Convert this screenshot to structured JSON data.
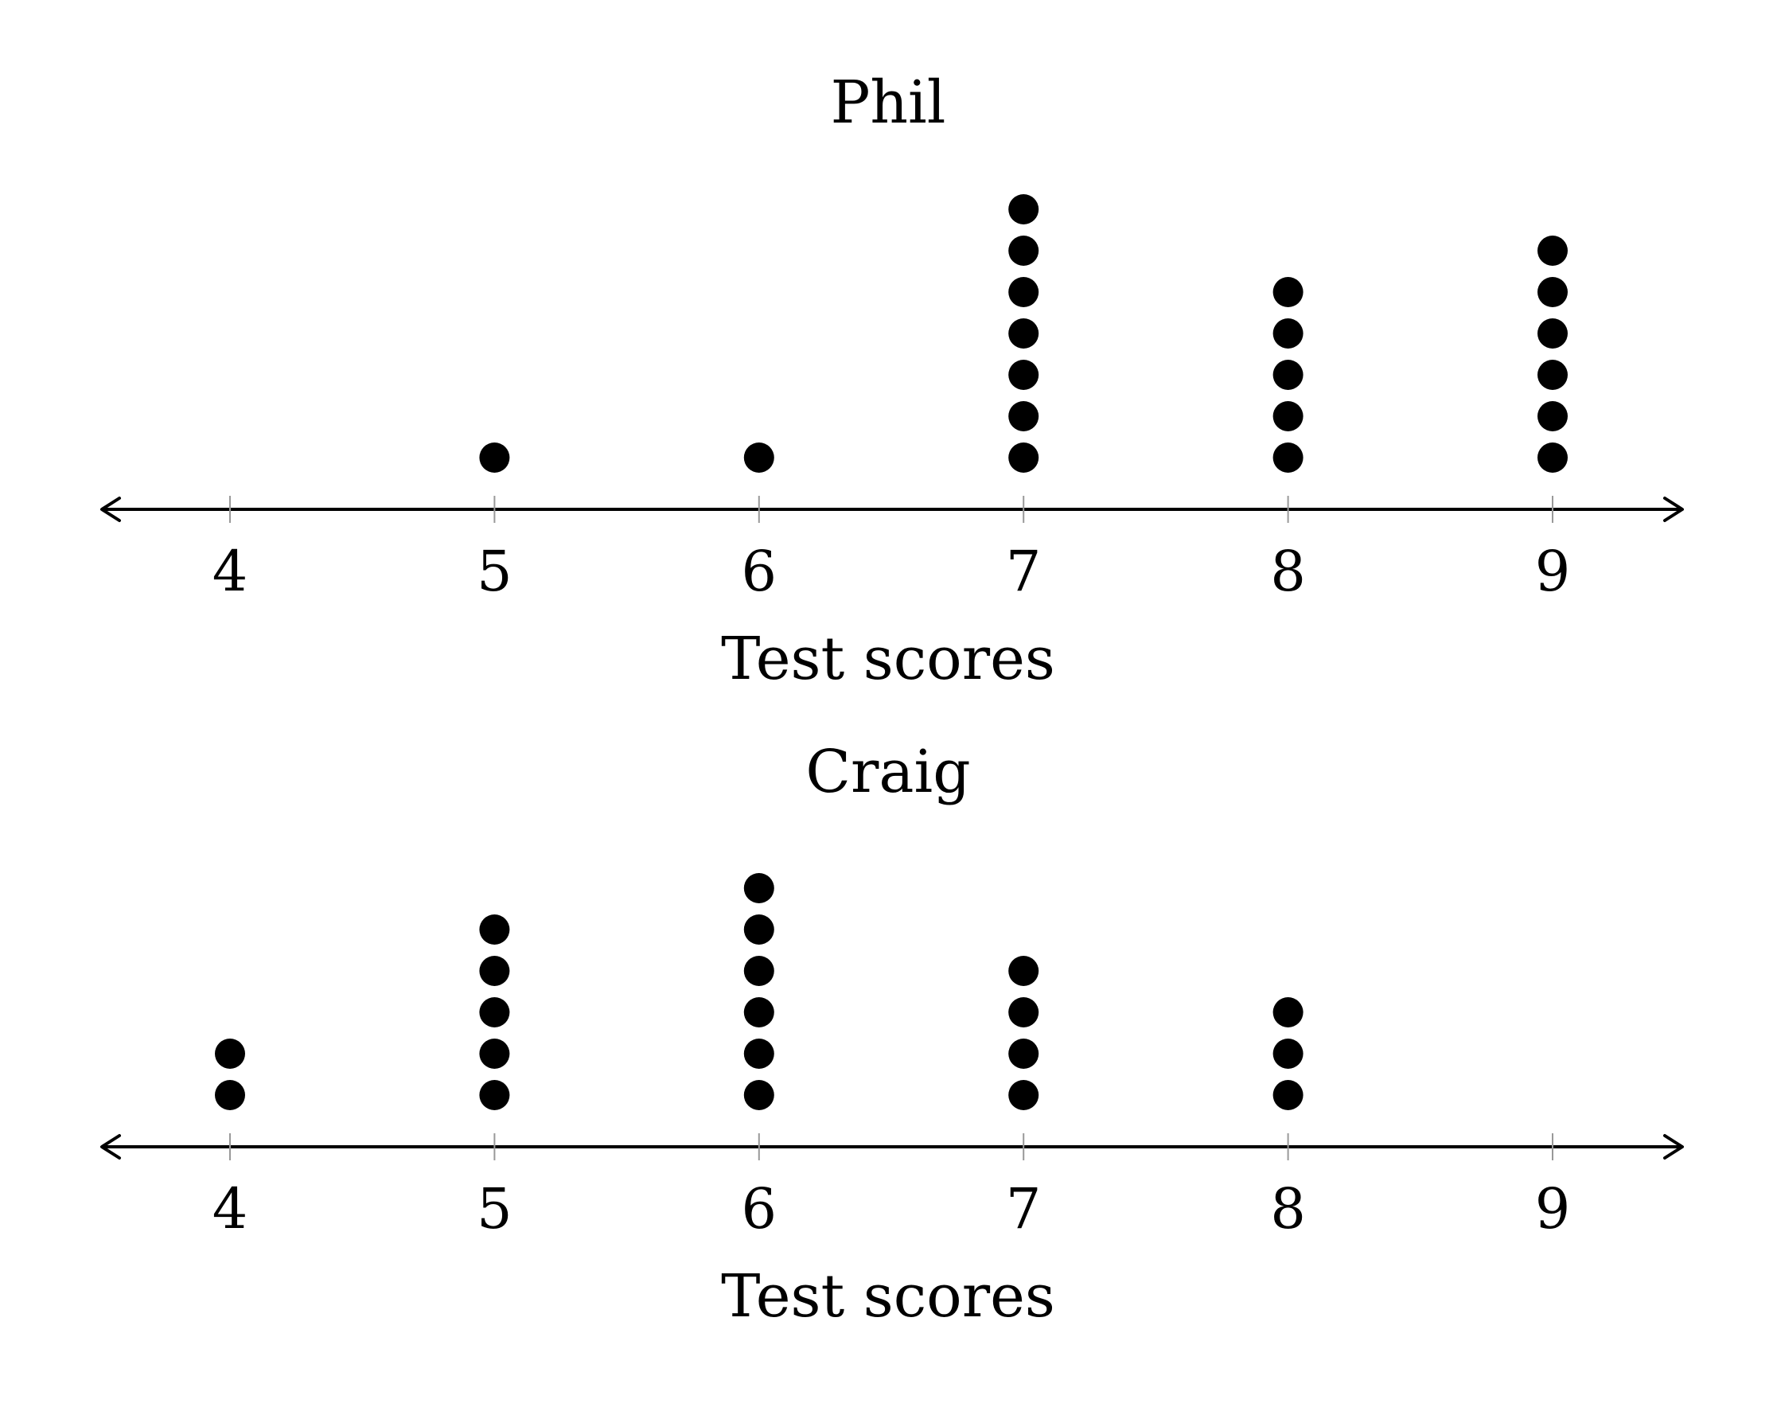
{
  "chart_data": [
    {
      "type": "scatter",
      "title": "Phil",
      "xlabel": "Test scores",
      "ylabel": "",
      "x_ticks": [
        4,
        5,
        6,
        7,
        8,
        9
      ],
      "counts": {
        "4": 0,
        "5": 1,
        "6": 1,
        "7": 7,
        "8": 5,
        "9": 6
      },
      "color": "#000000"
    },
    {
      "type": "scatter",
      "title": "Craig",
      "xlabel": "Test scores",
      "ylabel": "",
      "x_ticks": [
        4,
        5,
        6,
        7,
        8,
        9
      ],
      "counts": {
        "4": 2,
        "5": 5,
        "6": 6,
        "7": 4,
        "8": 3,
        "9": 0
      },
      "color": "#000000"
    }
  ]
}
